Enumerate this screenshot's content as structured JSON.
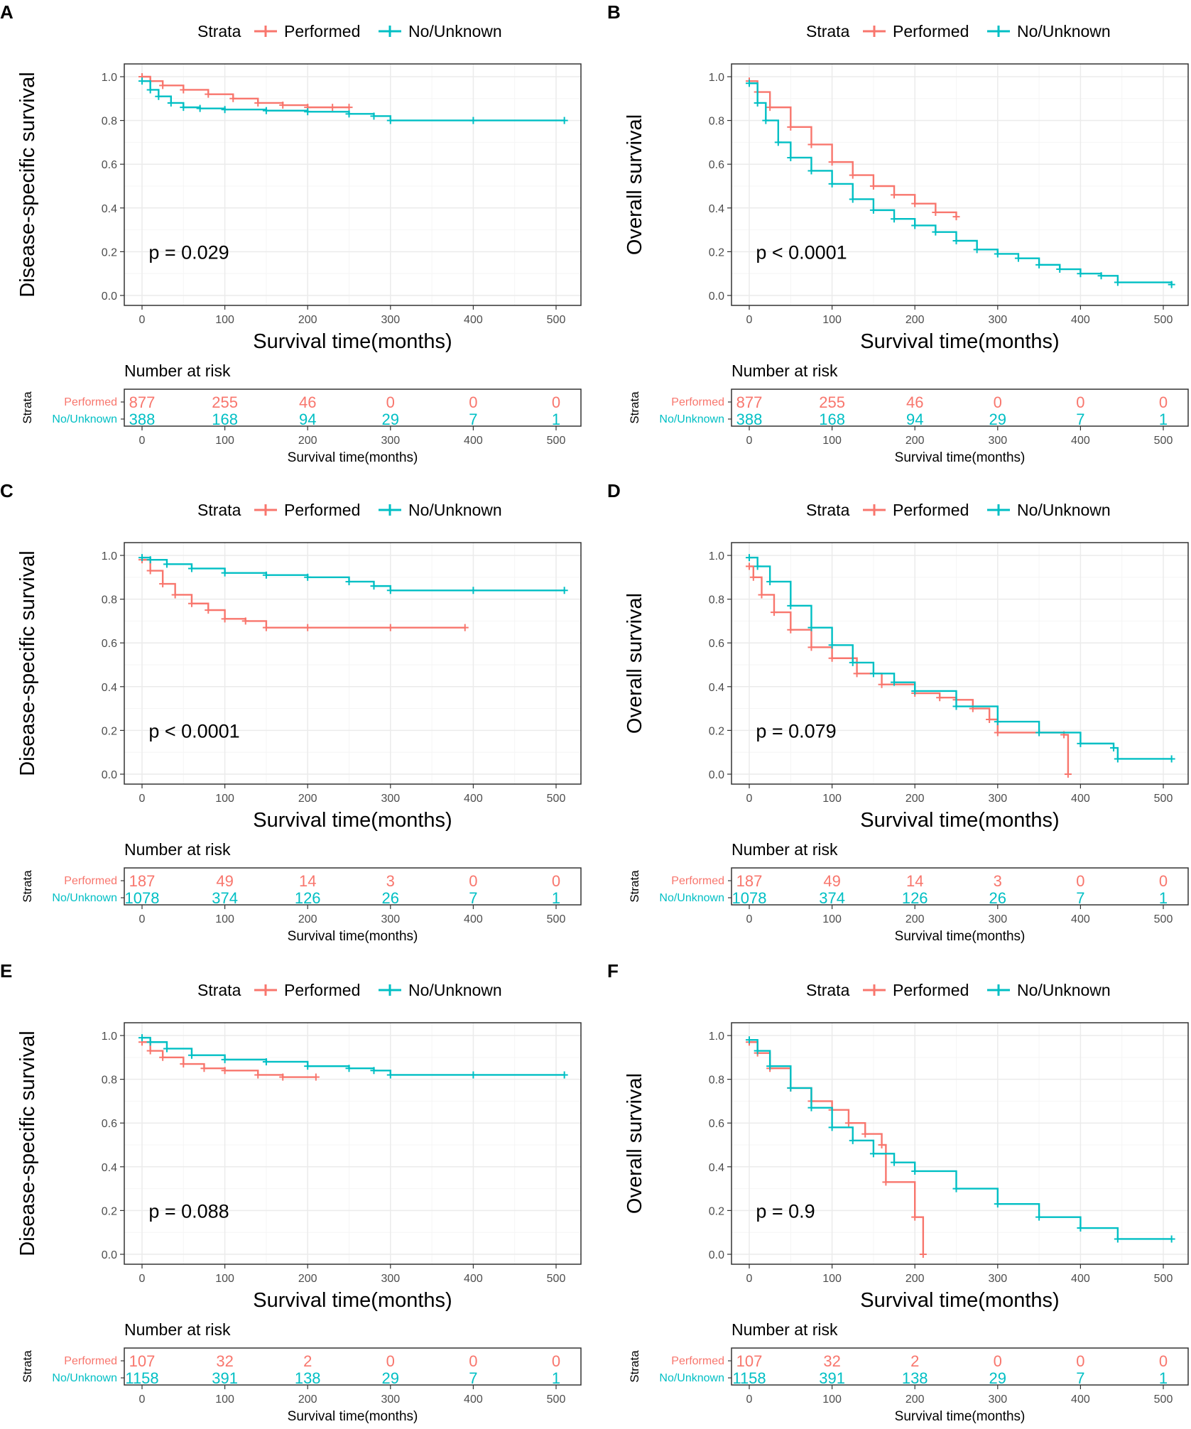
{
  "colors": {
    "performed": "#F8766D",
    "no_unknown": "#00BFC4",
    "grid": "#EBEBEB",
    "axis": "#333333",
    "tick_text": "#4D4D4D"
  },
  "legend": {
    "title": "Strata",
    "labels": [
      "Performed",
      "No/Unknown"
    ]
  },
  "chart_data": [
    {
      "type": "line",
      "panel": "A",
      "xlabel": "Survival time(months)",
      "ylabel": "Disease-specific survival",
      "xlim": [
        0,
        500
      ],
      "ylim": [
        0,
        1
      ],
      "xticks": [
        "0",
        "100",
        "200",
        "300",
        "400",
        "500"
      ],
      "yticks": [
        "0.0",
        "0.2",
        "0.4",
        "0.6",
        "0.8",
        "1.0"
      ],
      "pvalue": "p = 0.029",
      "series": [
        {
          "name": "Performed",
          "x": [
            0,
            10,
            25,
            50,
            80,
            110,
            140,
            170,
            200,
            230,
            250
          ],
          "y": [
            1.0,
            0.98,
            0.96,
            0.94,
            0.92,
            0.9,
            0.88,
            0.87,
            0.86,
            0.86,
            0.86
          ]
        },
        {
          "name": "No/Unknown",
          "x": [
            0,
            10,
            20,
            35,
            50,
            70,
            100,
            150,
            200,
            250,
            280,
            300,
            400,
            510
          ],
          "y": [
            0.98,
            0.94,
            0.91,
            0.88,
            0.86,
            0.855,
            0.85,
            0.845,
            0.84,
            0.83,
            0.82,
            0.8,
            0.8,
            0.8
          ]
        }
      ],
      "risk_table": {
        "title": "Number at risk",
        "strata_label": "Strata",
        "xlabel": "Survival time(months)",
        "rows": [
          {
            "name": "Performed",
            "values": [
              "877",
              "255",
              "46",
              "0",
              "0",
              "0"
            ]
          },
          {
            "name": "No/Unknown",
            "values": [
              "388",
              "168",
              "94",
              "29",
              "7",
              "1"
            ]
          }
        ]
      }
    },
    {
      "type": "line",
      "panel": "B",
      "xlabel": "Survival time(months)",
      "ylabel": "Overall survival",
      "xlim": [
        0,
        500
      ],
      "ylim": [
        0,
        1
      ],
      "xticks": [
        "0",
        "100",
        "200",
        "300",
        "400",
        "500"
      ],
      "yticks": [
        "0.0",
        "0.2",
        "0.4",
        "0.6",
        "0.8",
        "1.0"
      ],
      "pvalue": "p < 0.0001",
      "series": [
        {
          "name": "Performed",
          "x": [
            0,
            10,
            25,
            50,
            75,
            100,
            125,
            150,
            175,
            200,
            225,
            250
          ],
          "y": [
            0.98,
            0.93,
            0.86,
            0.77,
            0.69,
            0.61,
            0.55,
            0.5,
            0.46,
            0.42,
            0.38,
            0.36
          ]
        },
        {
          "name": "No/Unknown",
          "x": [
            0,
            10,
            20,
            35,
            50,
            75,
            100,
            125,
            150,
            175,
            200,
            225,
            250,
            275,
            300,
            325,
            350,
            375,
            400,
            425,
            445,
            510
          ],
          "y": [
            0.97,
            0.88,
            0.8,
            0.7,
            0.63,
            0.57,
            0.51,
            0.44,
            0.39,
            0.35,
            0.32,
            0.29,
            0.25,
            0.21,
            0.19,
            0.17,
            0.14,
            0.12,
            0.1,
            0.09,
            0.06,
            0.05
          ]
        }
      ],
      "risk_table": {
        "title": "Number at risk",
        "strata_label": "Strata",
        "xlabel": "Survival time(months)",
        "rows": [
          {
            "name": "Performed",
            "values": [
              "877",
              "255",
              "46",
              "0",
              "0",
              "0"
            ]
          },
          {
            "name": "No/Unknown",
            "values": [
              "388",
              "168",
              "94",
              "29",
              "7",
              "1"
            ]
          }
        ]
      }
    },
    {
      "type": "line",
      "panel": "C",
      "xlabel": "Survival time(months)",
      "ylabel": "Disease-specific survival",
      "xlim": [
        0,
        500
      ],
      "ylim": [
        0,
        1
      ],
      "xticks": [
        "0",
        "100",
        "200",
        "300",
        "400",
        "500"
      ],
      "yticks": [
        "0.0",
        "0.2",
        "0.4",
        "0.6",
        "0.8",
        "1.0"
      ],
      "pvalue": "p < 0.0001",
      "series": [
        {
          "name": "Performed",
          "x": [
            0,
            10,
            25,
            40,
            60,
            80,
            100,
            125,
            150,
            200,
            300,
            390
          ],
          "y": [
            0.98,
            0.93,
            0.87,
            0.82,
            0.78,
            0.75,
            0.71,
            0.7,
            0.67,
            0.67,
            0.67,
            0.67
          ]
        },
        {
          "name": "No/Unknown",
          "x": [
            0,
            10,
            30,
            60,
            100,
            150,
            200,
            250,
            280,
            300,
            400,
            510
          ],
          "y": [
            0.99,
            0.98,
            0.96,
            0.94,
            0.92,
            0.91,
            0.9,
            0.88,
            0.86,
            0.84,
            0.84,
            0.84
          ]
        }
      ],
      "risk_table": {
        "title": "Number at risk",
        "strata_label": "Strata",
        "xlabel": "Survival time(months)",
        "rows": [
          {
            "name": "Performed",
            "values": [
              "187",
              "49",
              "14",
              "3",
              "0",
              "0"
            ]
          },
          {
            "name": "No/Unknown",
            "values": [
              "1078",
              "374",
              "126",
              "26",
              "7",
              "1"
            ]
          }
        ]
      }
    },
    {
      "type": "line",
      "panel": "D",
      "xlabel": "Survival time(months)",
      "ylabel": "Overall survival",
      "xlim": [
        0,
        500
      ],
      "ylim": [
        0,
        1
      ],
      "xticks": [
        "0",
        "100",
        "200",
        "300",
        "400",
        "500"
      ],
      "yticks": [
        "0.0",
        "0.2",
        "0.4",
        "0.6",
        "0.8",
        "1.0"
      ],
      "pvalue": "p = 0.079",
      "series": [
        {
          "name": "Performed",
          "x": [
            0,
            5,
            15,
            30,
            50,
            75,
            100,
            130,
            160,
            200,
            230,
            250,
            270,
            290,
            300,
            380,
            385
          ],
          "y": [
            0.95,
            0.9,
            0.82,
            0.74,
            0.66,
            0.58,
            0.53,
            0.46,
            0.41,
            0.37,
            0.35,
            0.34,
            0.3,
            0.25,
            0.19,
            0.18,
            0.0
          ]
        },
        {
          "name": "No/Unknown",
          "x": [
            0,
            10,
            25,
            50,
            75,
            100,
            125,
            150,
            175,
            200,
            250,
            300,
            350,
            400,
            440,
            445,
            510
          ],
          "y": [
            0.99,
            0.95,
            0.88,
            0.77,
            0.67,
            0.59,
            0.51,
            0.46,
            0.42,
            0.38,
            0.31,
            0.24,
            0.19,
            0.14,
            0.12,
            0.07,
            0.07
          ]
        }
      ],
      "risk_table": {
        "title": "Number at risk",
        "strata_label": "Strata",
        "xlabel": "Survival time(months)",
        "rows": [
          {
            "name": "Performed",
            "values": [
              "187",
              "49",
              "14",
              "3",
              "0",
              "0"
            ]
          },
          {
            "name": "No/Unknown",
            "values": [
              "1078",
              "374",
              "126",
              "26",
              "7",
              "1"
            ]
          }
        ]
      }
    },
    {
      "type": "line",
      "panel": "E",
      "xlabel": "Survival time(months)",
      "ylabel": "Disease-specific survival",
      "xlim": [
        0,
        500
      ],
      "ylim": [
        0,
        1
      ],
      "xticks": [
        "0",
        "100",
        "200",
        "300",
        "400",
        "500"
      ],
      "yticks": [
        "0.0",
        "0.2",
        "0.4",
        "0.6",
        "0.8",
        "1.0"
      ],
      "pvalue": "p = 0.088",
      "series": [
        {
          "name": "Performed",
          "x": [
            0,
            10,
            25,
            50,
            75,
            100,
            140,
            170,
            210
          ],
          "y": [
            0.97,
            0.93,
            0.9,
            0.87,
            0.85,
            0.84,
            0.82,
            0.81,
            0.81
          ]
        },
        {
          "name": "No/Unknown",
          "x": [
            0,
            10,
            30,
            60,
            100,
            150,
            200,
            250,
            280,
            300,
            400,
            510
          ],
          "y": [
            0.99,
            0.97,
            0.94,
            0.91,
            0.89,
            0.88,
            0.86,
            0.85,
            0.84,
            0.82,
            0.82,
            0.82
          ]
        }
      ],
      "risk_table": {
        "title": "Number at risk",
        "strata_label": "Strata",
        "xlabel": "Survival time(months)",
        "rows": [
          {
            "name": "Performed",
            "values": [
              "107",
              "32",
              "2",
              "0",
              "0",
              "0"
            ]
          },
          {
            "name": "No/Unknown",
            "values": [
              "1158",
              "391",
              "138",
              "29",
              "7",
              "1"
            ]
          }
        ]
      }
    },
    {
      "type": "line",
      "panel": "F",
      "xlabel": "Survival time(months)",
      "ylabel": "Overall survival",
      "xlim": [
        0,
        500
      ],
      "ylim": [
        0,
        1
      ],
      "xticks": [
        "0",
        "100",
        "200",
        "300",
        "400",
        "500"
      ],
      "yticks": [
        "0.0",
        "0.2",
        "0.4",
        "0.6",
        "0.8",
        "1.0"
      ],
      "pvalue": "p = 0.9",
      "series": [
        {
          "name": "Performed",
          "x": [
            0,
            10,
            25,
            50,
            75,
            100,
            120,
            140,
            160,
            165,
            200,
            210
          ],
          "y": [
            0.97,
            0.92,
            0.85,
            0.76,
            0.7,
            0.66,
            0.6,
            0.55,
            0.5,
            0.33,
            0.17,
            0.0
          ]
        },
        {
          "name": "No/Unknown",
          "x": [
            0,
            10,
            25,
            50,
            75,
            100,
            125,
            150,
            175,
            200,
            250,
            300,
            350,
            400,
            445,
            510
          ],
          "y": [
            0.98,
            0.93,
            0.86,
            0.76,
            0.67,
            0.58,
            0.52,
            0.46,
            0.42,
            0.38,
            0.3,
            0.23,
            0.17,
            0.12,
            0.07,
            0.07
          ]
        }
      ],
      "risk_table": {
        "title": "Number at risk",
        "strata_label": "Strata",
        "xlabel": "Survival time(months)",
        "rows": [
          {
            "name": "Performed",
            "values": [
              "107",
              "32",
              "2",
              "0",
              "0",
              "0"
            ]
          },
          {
            "name": "No/Unknown",
            "values": [
              "1158",
              "391",
              "138",
              "29",
              "7",
              "1"
            ]
          }
        ]
      }
    }
  ]
}
